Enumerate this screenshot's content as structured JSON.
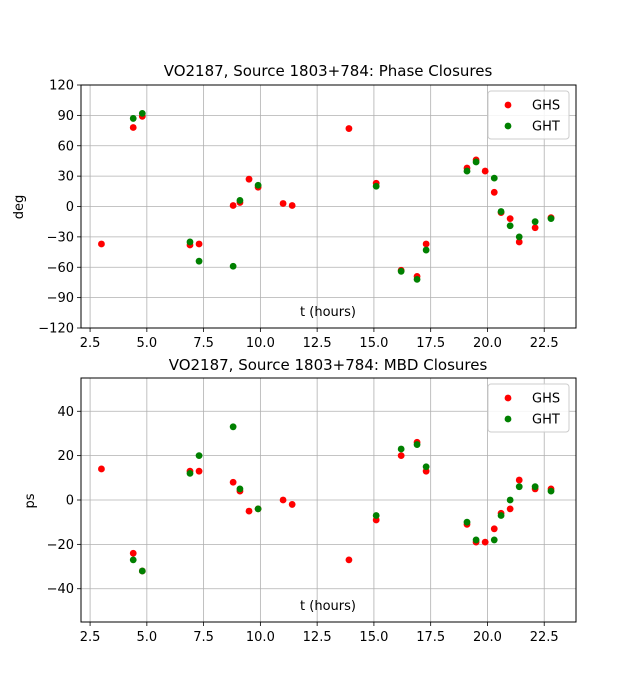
{
  "chart_data": [
    {
      "type": "scatter",
      "title": "VO2187, Source 1803+784: Phase Closures",
      "xlabel": "t (hours)",
      "ylabel": "deg",
      "xlim": [
        2.1,
        23.9
      ],
      "ylim": [
        -120,
        120
      ],
      "xticks": [
        "2.5",
        "5.0",
        "7.5",
        "10.0",
        "12.5",
        "15.0",
        "17.5",
        "20.0",
        "22.5"
      ],
      "yticks": [
        "−120",
        "−90",
        "−60",
        "−30",
        "0",
        "30",
        "60",
        "90",
        "120"
      ],
      "grid": true,
      "legend": "top-right",
      "series": [
        {
          "name": "GHS",
          "color": "#ff0000",
          "points": [
            [
              3.0,
              -37
            ],
            [
              4.4,
              78
            ],
            [
              4.8,
              89
            ],
            [
              6.9,
              -38
            ],
            [
              7.3,
              -37
            ],
            [
              8.8,
              1
            ],
            [
              9.1,
              4
            ],
            [
              9.5,
              27
            ],
            [
              9.9,
              19
            ],
            [
              11.0,
              3
            ],
            [
              11.4,
              1
            ],
            [
              13.9,
              77
            ],
            [
              15.1,
              23
            ],
            [
              16.2,
              -63
            ],
            [
              16.9,
              -69
            ],
            [
              17.3,
              -37
            ],
            [
              19.1,
              38
            ],
            [
              19.5,
              46
            ],
            [
              19.9,
              35
            ],
            [
              20.3,
              14
            ],
            [
              20.6,
              -6
            ],
            [
              21.0,
              -12
            ],
            [
              21.4,
              -35
            ],
            [
              22.1,
              -21
            ],
            [
              22.8,
              -11
            ]
          ]
        },
        {
          "name": "GHT",
          "color": "#008000",
          "points": [
            [
              4.4,
              87
            ],
            [
              4.8,
              92
            ],
            [
              6.9,
              -35
            ],
            [
              7.3,
              -54
            ],
            [
              8.8,
              -59
            ],
            [
              9.1,
              6
            ],
            [
              9.9,
              21
            ],
            [
              15.1,
              20
            ],
            [
              16.2,
              -64
            ],
            [
              16.9,
              -72
            ],
            [
              17.3,
              -43
            ],
            [
              19.1,
              35
            ],
            [
              19.5,
              44
            ],
            [
              20.3,
              28
            ],
            [
              20.6,
              -5
            ],
            [
              21.0,
              -19
            ],
            [
              21.4,
              -30
            ],
            [
              22.1,
              -15
            ],
            [
              22.8,
              -12
            ]
          ]
        }
      ]
    },
    {
      "type": "scatter",
      "title": "VO2187, Source 1803+784: MBD Closures",
      "xlabel": "t (hours)",
      "ylabel": "ps",
      "xlim": [
        2.1,
        23.9
      ],
      "ylim": [
        -55,
        55
      ],
      "xticks": [
        "2.5",
        "5.0",
        "7.5",
        "10.0",
        "12.5",
        "15.0",
        "17.5",
        "20.0",
        "22.5"
      ],
      "yticks": [
        "−40",
        "−20",
        "0",
        "20",
        "40"
      ],
      "grid": true,
      "legend": "top-right",
      "series": [
        {
          "name": "GHS",
          "color": "#ff0000",
          "points": [
            [
              3.0,
              14
            ],
            [
              4.4,
              -24
            ],
            [
              4.8,
              -32
            ],
            [
              6.9,
              13
            ],
            [
              7.3,
              13
            ],
            [
              8.8,
              8
            ],
            [
              9.1,
              4
            ],
            [
              9.5,
              -5
            ],
            [
              9.9,
              -4
            ],
            [
              11.0,
              0
            ],
            [
              11.4,
              -2
            ],
            [
              13.9,
              -27
            ],
            [
              15.1,
              -9
            ],
            [
              16.2,
              20
            ],
            [
              16.9,
              26
            ],
            [
              17.3,
              13
            ],
            [
              19.1,
              -11
            ],
            [
              19.5,
              -19
            ],
            [
              19.9,
              -19
            ],
            [
              20.3,
              -13
            ],
            [
              20.6,
              -6
            ],
            [
              21.0,
              -4
            ],
            [
              21.4,
              9
            ],
            [
              22.1,
              5
            ],
            [
              22.8,
              5
            ]
          ]
        },
        {
          "name": "GHT",
          "color": "#008000",
          "points": [
            [
              4.4,
              -27
            ],
            [
              4.8,
              -32
            ],
            [
              6.9,
              12
            ],
            [
              7.3,
              20
            ],
            [
              8.8,
              33
            ],
            [
              9.1,
              5
            ],
            [
              9.9,
              -4
            ],
            [
              15.1,
              -7
            ],
            [
              16.2,
              23
            ],
            [
              16.9,
              25
            ],
            [
              17.3,
              15
            ],
            [
              19.1,
              -10
            ],
            [
              19.5,
              -18
            ],
            [
              20.3,
              -18
            ],
            [
              20.6,
              -7
            ],
            [
              21.0,
              0
            ],
            [
              21.4,
              6
            ],
            [
              22.1,
              6
            ],
            [
              22.8,
              4
            ]
          ]
        }
      ]
    }
  ]
}
